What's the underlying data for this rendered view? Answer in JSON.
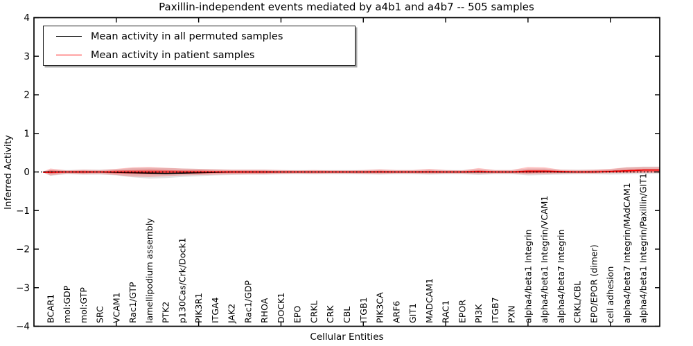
{
  "chart_data": {
    "type": "line",
    "title": "Paxillin-independent events mediated by a4b1 and a4b7 -- 505 samples",
    "xlabel": "Cellular Entities",
    "ylabel": "Inferred Activity",
    "ylim": [
      -4,
      4
    ],
    "yticks": [
      -4,
      -3,
      -2,
      -1,
      0,
      1,
      2,
      3,
      4
    ],
    "ytick_labels": [
      "−4",
      "−3",
      "−2",
      "−1",
      "0",
      "1",
      "2",
      "3",
      "4"
    ],
    "xtick_positions": [
      5,
      10,
      15,
      20,
      25,
      30,
      35
    ],
    "grid": false,
    "zero_line": {
      "style": "dotted",
      "value": 0,
      "color": "#000000"
    },
    "legend_position": "upper left",
    "legend": [
      {
        "label": "Mean activity in all permuted samples",
        "color": "#000000"
      },
      {
        "label": "Mean activity in patient samples",
        "color": "#ff0000"
      }
    ],
    "categories": [
      "BCAR1",
      "mol:GDP",
      "mol:GTP",
      "SRC",
      "VCAM1",
      "Rac1/GTP",
      "lamellipodium assembly",
      "PTK2",
      "p130Cas/Crk/Dock1",
      "PIK3R1",
      "ITGA4",
      "JAK2",
      "Rac1/GDP",
      "RHOA",
      "DOCK1",
      "EPO",
      "CRKL",
      "CRK",
      "CBL",
      "ITGB1",
      "PIK3CA",
      "ARF6",
      "GIT1",
      "MADCAM1",
      "RAC1",
      "EPOR",
      "PI3K",
      "ITGB7",
      "PXN",
      "alpha4/beta1 Integrin",
      "alpha4/beta1 Integrin/VCAM1",
      "alpha4/beta7 Integrin",
      "CRKL/CBL",
      "EPO/EPOR (dimer)",
      "cell adhesion",
      "alpha4/beta7 Integrin/MAdCAM1",
      "alpha4/beta1 Integrin/Paxillin/GIT1"
    ],
    "series": [
      {
        "name": "permuted_mean",
        "label": "Mean activity in all permuted samples",
        "color": "#000000",
        "values": [
          0,
          0,
          0,
          0,
          -0.01,
          -0.02,
          -0.03,
          -0.04,
          -0.03,
          -0.02,
          -0.01,
          0,
          0,
          0,
          0,
          0,
          0,
          0,
          0,
          0,
          0,
          0,
          0,
          0,
          0,
          0,
          0,
          0,
          0,
          0.01,
          0.01,
          0,
          0,
          0,
          0.01,
          0.03,
          0.05
        ]
      },
      {
        "name": "patient_mean",
        "label": "Mean activity in patient samples",
        "color": "#ff0000",
        "values": [
          -0.01,
          0,
          0,
          0,
          0,
          0,
          0,
          0,
          0,
          0,
          0,
          0,
          0,
          0,
          0,
          0,
          0,
          0,
          0,
          0,
          0,
          0,
          0,
          0,
          0,
          0,
          0.01,
          0,
          0,
          0.02,
          0.02,
          0.01,
          0,
          0,
          0.01,
          0.03,
          0.05
        ]
      }
    ],
    "bands": [
      {
        "name": "permuted_range",
        "color": "rgba(110,110,110,0.20)",
        "upper": [
          0.06,
          0.05,
          0.06,
          0.06,
          0.07,
          0.1,
          0.11,
          0.1,
          0.09,
          0.08,
          0.07,
          0.06,
          0.06,
          0.06,
          0.05,
          0.05,
          0.05,
          0.05,
          0.05,
          0.05,
          0.06,
          0.05,
          0.05,
          0.06,
          0.05,
          0.05,
          0.07,
          0.05,
          0.05,
          0.09,
          0.09,
          0.06,
          0.06,
          0.06,
          0.07,
          0.12,
          0.14
        ],
        "lower": [
          -0.1,
          -0.06,
          -0.07,
          -0.07,
          -0.09,
          -0.14,
          -0.17,
          -0.16,
          -0.13,
          -0.11,
          -0.09,
          -0.08,
          -0.07,
          -0.07,
          -0.06,
          -0.06,
          -0.06,
          -0.06,
          -0.06,
          -0.06,
          -0.07,
          -0.06,
          -0.06,
          -0.07,
          -0.06,
          -0.06,
          -0.08,
          -0.06,
          -0.06,
          -0.09,
          -0.08,
          -0.07,
          -0.06,
          -0.06,
          -0.07,
          -0.06,
          -0.05
        ]
      },
      {
        "name": "patient_range_outer",
        "color": "rgba(255,30,30,0.25)",
        "upper": [
          0.09,
          0.04,
          0.06,
          0.05,
          0.08,
          0.12,
          0.13,
          0.11,
          0.09,
          0.08,
          0.07,
          0.06,
          0.06,
          0.06,
          0.05,
          0.04,
          0.05,
          0.04,
          0.04,
          0.05,
          0.07,
          0.05,
          0.05,
          0.08,
          0.05,
          0.04,
          0.1,
          0.05,
          0.05,
          0.13,
          0.12,
          0.06,
          0.05,
          0.06,
          0.08,
          0.12,
          0.13
        ],
        "lower": [
          -0.09,
          -0.04,
          -0.06,
          -0.05,
          -0.08,
          -0.12,
          -0.13,
          -0.11,
          -0.09,
          -0.08,
          -0.07,
          -0.06,
          -0.06,
          -0.06,
          -0.05,
          -0.04,
          -0.05,
          -0.04,
          -0.04,
          -0.05,
          -0.05,
          -0.04,
          -0.04,
          -0.05,
          -0.04,
          -0.04,
          -0.05,
          -0.04,
          -0.04,
          -0.06,
          -0.05,
          -0.04,
          -0.04,
          -0.04,
          -0.03,
          -0.03,
          -0.02
        ]
      },
      {
        "name": "patient_range_inner",
        "color": "rgba(235,30,30,0.45)",
        "upper": [
          0.04,
          0.02,
          0.03,
          0.02,
          0.04,
          0.05,
          0.06,
          0.05,
          0.04,
          0.04,
          0.03,
          0.03,
          0.03,
          0.03,
          0.02,
          0.02,
          0.02,
          0.02,
          0.02,
          0.02,
          0.03,
          0.02,
          0.02,
          0.03,
          0.02,
          0.02,
          0.04,
          0.02,
          0.02,
          0.05,
          0.05,
          0.03,
          0.02,
          0.03,
          0.04,
          0.06,
          0.07
        ],
        "lower": [
          -0.04,
          -0.02,
          -0.03,
          -0.02,
          -0.04,
          -0.05,
          -0.06,
          -0.05,
          -0.04,
          -0.04,
          -0.03,
          -0.03,
          -0.03,
          -0.03,
          -0.02,
          -0.02,
          -0.02,
          -0.02,
          -0.02,
          -0.02,
          -0.02,
          -0.02,
          -0.02,
          -0.02,
          -0.02,
          -0.02,
          -0.02,
          -0.02,
          -0.02,
          -0.03,
          -0.02,
          -0.02,
          -0.02,
          -0.02,
          -0.01,
          -0.01,
          -0.01
        ]
      }
    ]
  }
}
